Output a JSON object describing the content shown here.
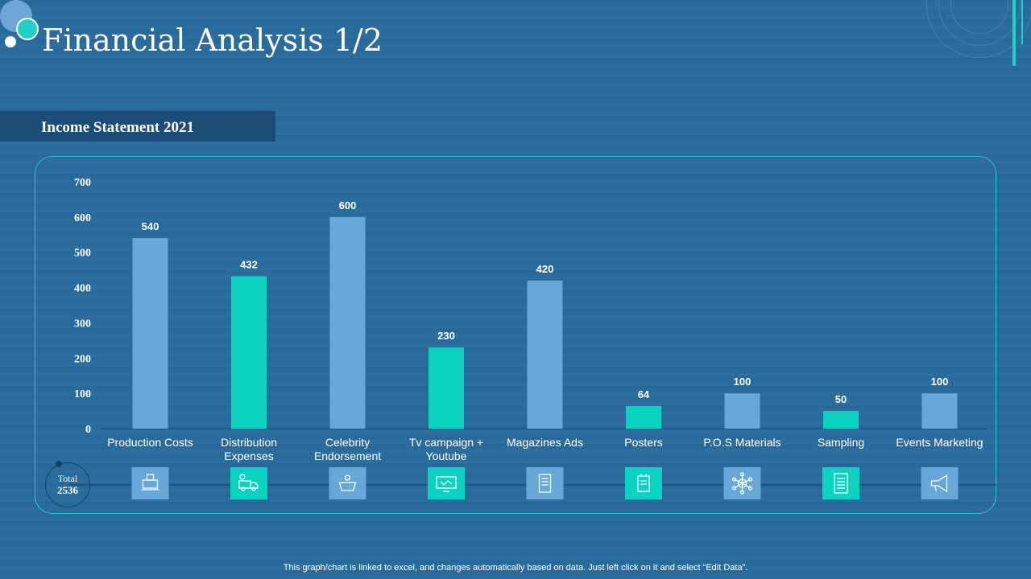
{
  "header": {
    "title": "Financial Analysis 1/2",
    "subtitle": "Income Statement 2021"
  },
  "colors": {
    "bar_blue": "#68a8d8",
    "bar_teal": "#0cd3c1",
    "icon_bg_blue": "#68a8d8",
    "icon_bg_teal": "#0cd3c1"
  },
  "total": {
    "label": "Total",
    "value": "2536"
  },
  "chart_data": {
    "type": "bar",
    "categories": [
      [
        "Production Costs"
      ],
      [
        "Distribution",
        "Expenses"
      ],
      [
        "Celebrity",
        "Endorsement"
      ],
      [
        "Tv campaign +",
        "Youtube"
      ],
      [
        "Magazines Ads"
      ],
      [
        "Posters"
      ],
      [
        "P.O.S Materials"
      ],
      [
        "Sampling"
      ],
      [
        "Events Marketing"
      ]
    ],
    "values": [
      540,
      432,
      600,
      230,
      420,
      64,
      100,
      50,
      100
    ],
    "bar_colors": [
      "blue",
      "teal",
      "blue",
      "teal",
      "blue",
      "teal",
      "blue",
      "teal",
      "blue"
    ],
    "icons": [
      "factory-icon",
      "delivery-truck-icon",
      "celebrity-icon",
      "tv-campaign-icon",
      "magazine-icon",
      "poster-icon",
      "pos-network-icon",
      "sampling-document-icon",
      "megaphone-icon"
    ],
    "ylim": [
      0,
      700
    ],
    "yticks": [
      0,
      100,
      200,
      300,
      400,
      500,
      600,
      700
    ],
    "grid": false,
    "legend": "none"
  },
  "footer": {
    "note": "This graph/chart is linked to excel,  and changes automatically based on data. Just left click on it and select “Edit Data”."
  }
}
